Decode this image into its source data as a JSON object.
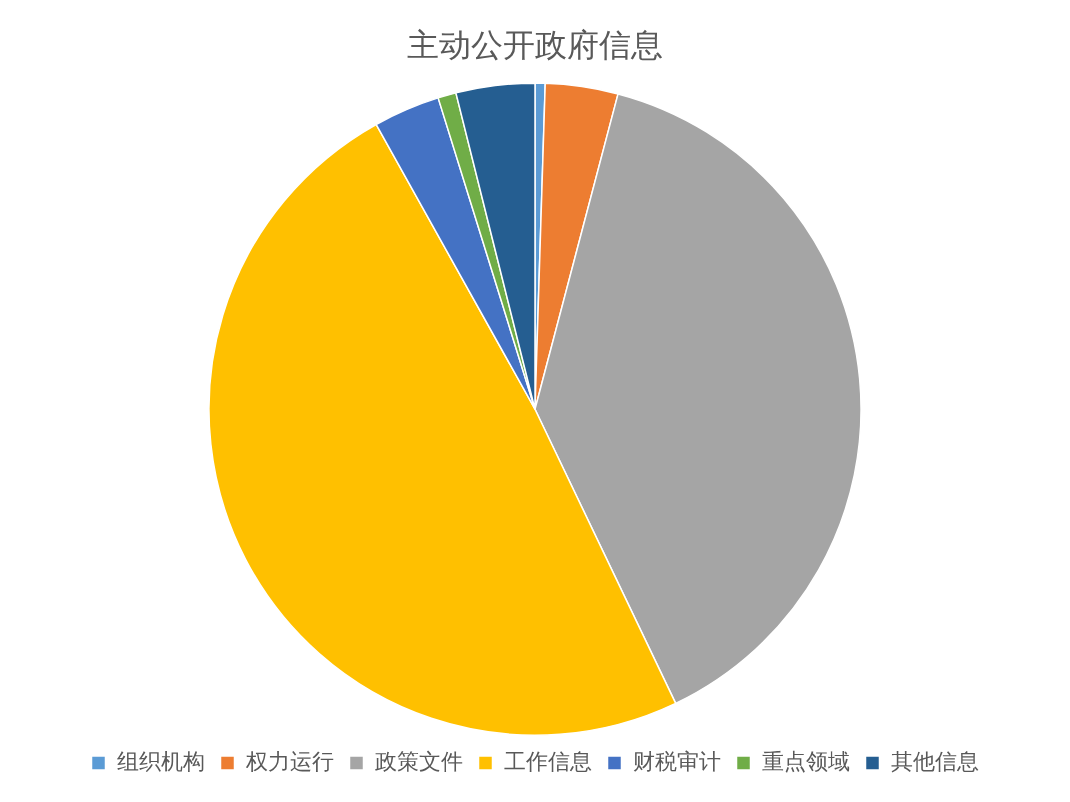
{
  "chart_data": {
    "type": "pie",
    "title": "主动公开政府信息",
    "categories": [
      "组织机构",
      "权力运行",
      "政策文件",
      "工作信息",
      "财税审计",
      "重点领域",
      "其他信息"
    ],
    "values": [
      0.5,
      3.6,
      38.8,
      49,
      3.3,
      0.9,
      3.9
    ],
    "colors": [
      "#5b9bd5",
      "#ed7d31",
      "#a5a5a5",
      "#ffc000",
      "#4472c4",
      "#70ad47",
      "#255e91"
    ],
    "legend": "bottom"
  }
}
